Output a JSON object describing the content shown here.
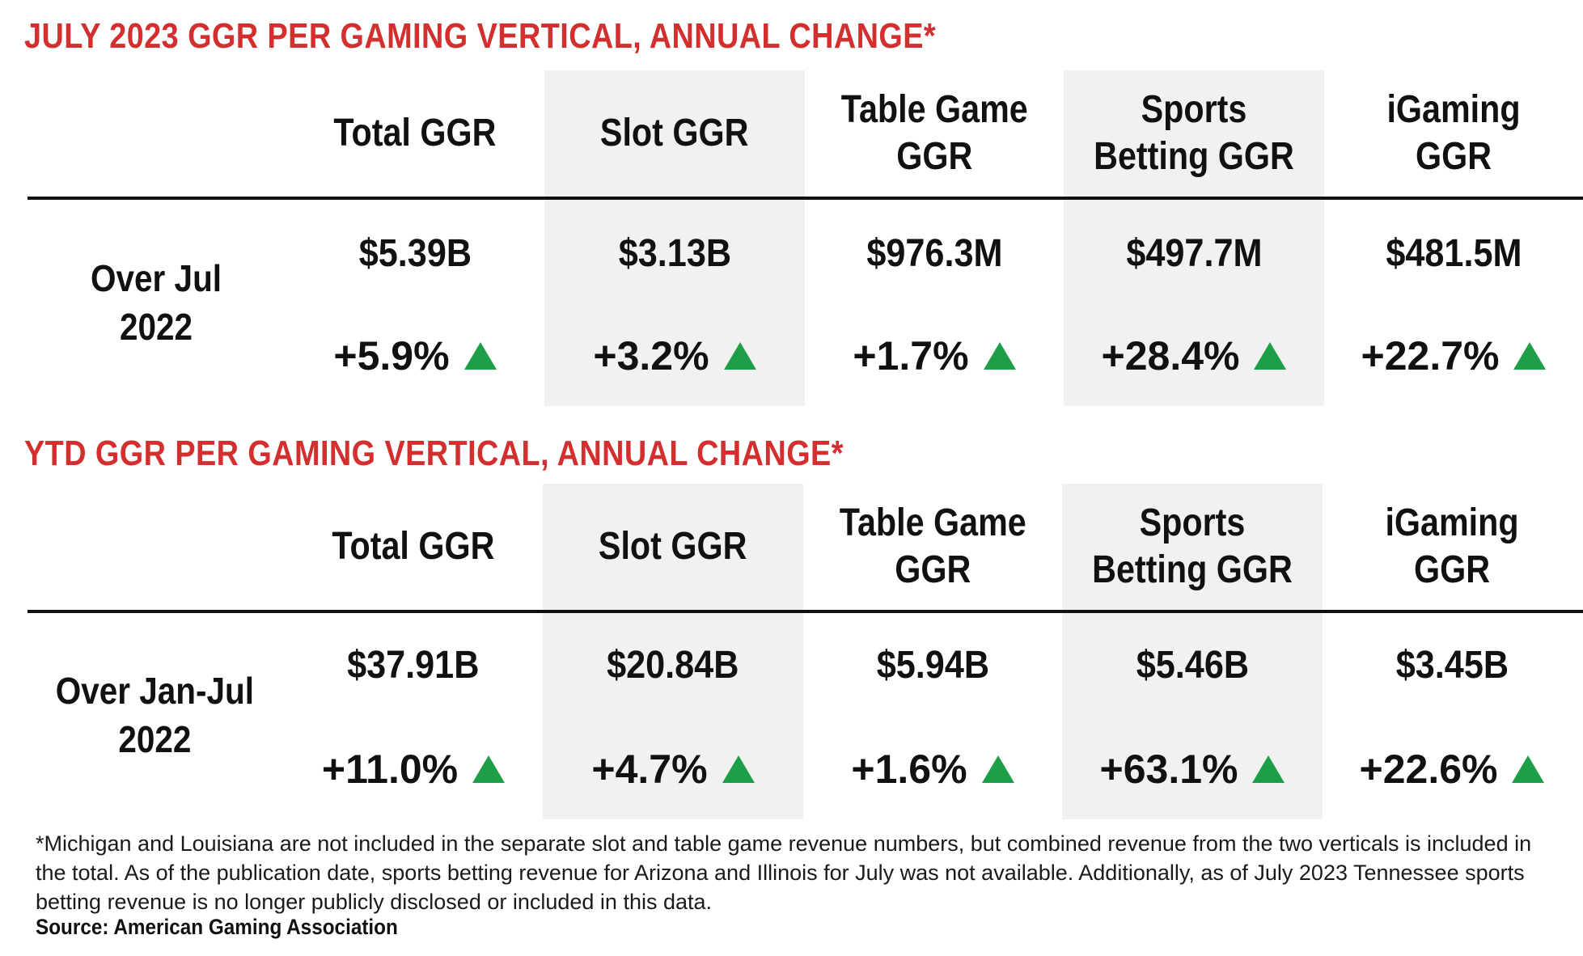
{
  "tables": [
    {
      "title": "JULY 2023 GGR PER GAMING VERTICAL, ANNUAL CHANGE*",
      "row_label": "Over Jul\n2022",
      "columns": [
        {
          "header": "Total GGR",
          "value": "$5.39B",
          "change": "+5.9%"
        },
        {
          "header": "Slot GGR",
          "value": "$3.13B",
          "change": "+3.2%"
        },
        {
          "header": "Table Game\nGGR",
          "value": "$976.3M",
          "change": "+1.7%"
        },
        {
          "header": "Sports\nBetting GGR",
          "value": "$497.7M",
          "change": "+28.4%"
        },
        {
          "header": "iGaming\nGGR",
          "value": "$481.5M",
          "change": "+22.7%"
        }
      ]
    },
    {
      "title": "YTD GGR PER GAMING VERTICAL, ANNUAL CHANGE*",
      "row_label": "Over Jan-Jul\n2022",
      "columns": [
        {
          "header": "Total GGR",
          "value": "$37.91B",
          "change": "+11.0%"
        },
        {
          "header": "Slot GGR",
          "value": "$20.84B",
          "change": "+4.7%"
        },
        {
          "header": "Table Game\nGGR",
          "value": "$5.94B",
          "change": "+1.6%"
        },
        {
          "header": "Sports\nBetting GGR",
          "value": "$5.46B",
          "change": "+63.1%"
        },
        {
          "header": "iGaming\nGGR",
          "value": "$3.45B",
          "change": "+22.6%"
        }
      ]
    }
  ],
  "footnote": "*Michigan and Louisiana are not included in the separate slot and table game revenue numbers, but combined revenue from the two verticals is included in the total. As of the publication date, sports betting revenue for Arizona and Illinois for July was not available. Additionally, as of July 2023 Tennessee sports betting revenue is no longer publicly disclosed or included in this data.",
  "source": "Source: American Gaming Association",
  "colors": {
    "title": "#d32f2f",
    "up_arrow": "#1f9e48",
    "shade": "#f1f1f1"
  },
  "icons": {
    "change_direction": "up-triangle-icon"
  },
  "chart_data": [
    {
      "type": "table",
      "title": "JULY 2023 GGR PER GAMING VERTICAL, ANNUAL CHANGE*",
      "categories": [
        "Total GGR",
        "Slot GGR",
        "Table Game GGR",
        "Sports Betting GGR",
        "iGaming GGR"
      ],
      "series": [
        {
          "name": "Over Jul 2022",
          "values": [
            "$5.39B",
            "$3.13B",
            "$976.3M",
            "$497.7M",
            "$481.5M"
          ],
          "changes_pct": [
            5.9,
            3.2,
            1.7,
            28.4,
            22.7
          ]
        }
      ]
    },
    {
      "type": "table",
      "title": "YTD GGR PER GAMING VERTICAL, ANNUAL CHANGE*",
      "categories": [
        "Total GGR",
        "Slot GGR",
        "Table Game GGR",
        "Sports Betting GGR",
        "iGaming GGR"
      ],
      "series": [
        {
          "name": "Over Jan-Jul 2022",
          "values": [
            "$37.91B",
            "$20.84B",
            "$5.94B",
            "$5.46B",
            "$3.45B"
          ],
          "changes_pct": [
            11.0,
            4.7,
            1.6,
            63.1,
            22.6
          ]
        }
      ]
    }
  ]
}
